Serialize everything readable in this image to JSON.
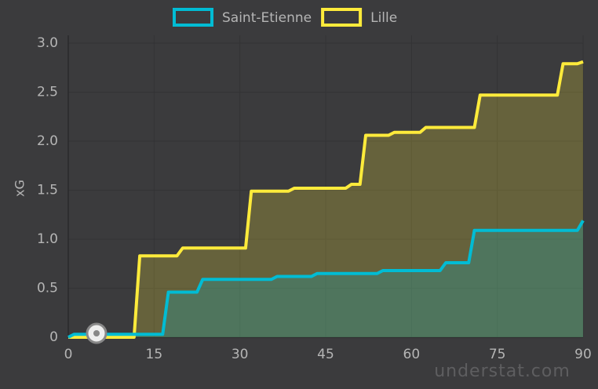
{
  "chart_data": {
    "type": "line",
    "y_label": "xG",
    "xlim": [
      0,
      90
    ],
    "xticks": [
      0,
      15,
      30,
      45,
      60,
      75,
      90
    ],
    "ylim": [
      0,
      3
    ],
    "yticks": [
      0,
      0.5,
      {
        "value": 1,
        "label": "1.0"
      },
      1.5,
      {
        "value": 2,
        "label": "2.0"
      },
      2.5,
      {
        "value": 3,
        "label": "3.0"
      }
    ],
    "grid": true,
    "legend": "top",
    "watermark": "understat.com",
    "series": [
      {
        "name": "Saint-Etienne",
        "color": "#00bcd4",
        "x": [
          0,
          1,
          16.5,
          17.5,
          22.5,
          23.5,
          35.5,
          36.5,
          42.5,
          43.5,
          54,
          55,
          65,
          66,
          70,
          71,
          89,
          90
        ],
        "values": [
          0,
          0.03,
          0.03,
          0.46,
          0.46,
          0.59,
          0.59,
          0.62,
          0.62,
          0.65,
          0.65,
          0.68,
          0.68,
          0.76,
          0.76,
          1.09,
          1.09,
          1.19
        ]
      },
      {
        "name": "Lille",
        "color": "#ffeb3b",
        "x": [
          0,
          11.5,
          12.5,
          19,
          20,
          31,
          32,
          38.5,
          39.5,
          48.5,
          49.5,
          51,
          52,
          56,
          57,
          61.5,
          62.5,
          71,
          72,
          85.5,
          86.5,
          89,
          90
        ],
        "values": [
          0,
          0,
          0.83,
          0.83,
          0.91,
          0.91,
          1.49,
          1.49,
          1.52,
          1.52,
          1.56,
          1.56,
          2.06,
          2.06,
          2.09,
          2.09,
          2.14,
          2.14,
          2.47,
          2.47,
          2.79,
          2.79,
          2.81
        ]
      }
    ]
  }
}
